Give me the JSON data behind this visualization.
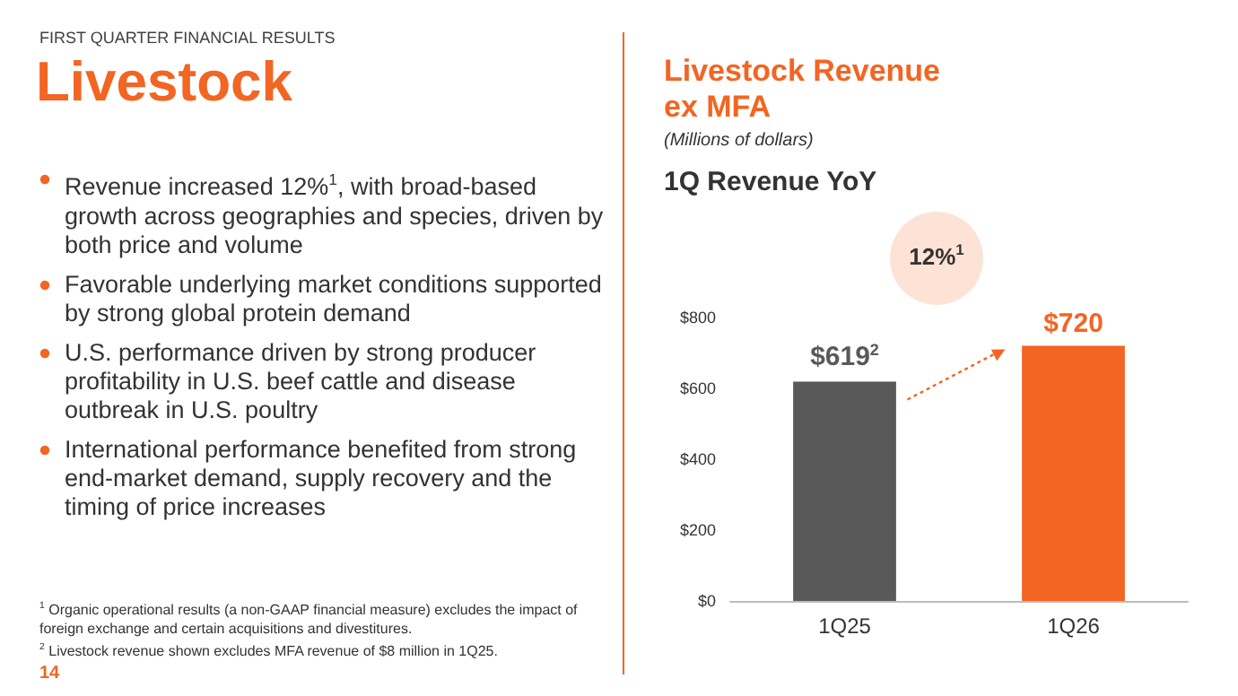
{
  "chart_data": {
    "type": "bar",
    "title": "Livestock Revenue ex MFA",
    "subtitle": "(Millions of dollars)",
    "categories": [
      "1Q25",
      "1Q26"
    ],
    "values": [
      619,
      720
    ],
    "colors": [
      "#595959",
      "#f26522"
    ],
    "value_labels": [
      "$619$^{2}$",
      "$720"
    ],
    "ylim": [
      0,
      800
    ],
    "yticks": [
      {
        "value": 0,
        "label": "$0"
      },
      {
        "value": 200,
        "label": "$200"
      },
      {
        "value": 400,
        "label": "$400"
      },
      {
        "value": 600,
        "label": "$600"
      },
      {
        "value": 800,
        "label": "$800"
      }
    ],
    "grid": false,
    "annotations": [
      "FIRST QUARTER FINANCIAL RESULTS",
      "Livestock",
      "Revenue increased 12%$^{1}$, with broad-based growth across geographies and species, driven by both price and volume",
      "Favorable underlying market conditions supported by strong global protein demand",
      "U.S. performance driven by strong producer profitability in U.S. beef cattle and disease outbreak in U.S. poultry",
      "International performance benefited from strong end-market demand, supply recovery and the timing of price increases",
      "1Q Revenue YoY",
      "12%$^{1}$",
      "$^{1}$ Organic operational results (a non-GAAP financial measure) excludes the impact of foreign exchange and certain acquisitions and divestitures.",
      "$^{2}$ Livestock revenue shown excludes MFA revenue of $8 million in 1Q25.",
      "14"
    ]
  }
}
